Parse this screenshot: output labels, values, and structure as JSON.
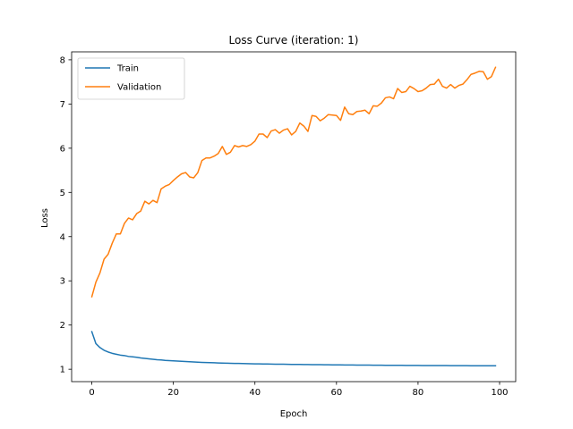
{
  "chart_data": {
    "type": "line",
    "title": "Loss Curve (iteration: 1)",
    "xlabel": "Epoch",
    "ylabel": "Loss",
    "xlim": [
      -4.95,
      103.95
    ],
    "ylim": [
      0.72,
      8.18
    ],
    "xticks": [
      0,
      20,
      40,
      60,
      80,
      100
    ],
    "yticks": [
      1,
      2,
      3,
      4,
      5,
      6,
      7,
      8
    ],
    "grid": false,
    "legend": "top-left",
    "x": [
      0,
      1,
      2,
      3,
      4,
      5,
      6,
      7,
      8,
      9,
      10,
      11,
      12,
      13,
      14,
      15,
      16,
      17,
      18,
      19,
      20,
      21,
      22,
      23,
      24,
      25,
      26,
      27,
      28,
      29,
      30,
      31,
      32,
      33,
      34,
      35,
      36,
      37,
      38,
      39,
      40,
      41,
      42,
      43,
      44,
      45,
      46,
      47,
      48,
      49,
      50,
      51,
      52,
      53,
      54,
      55,
      56,
      57,
      58,
      59,
      60,
      61,
      62,
      63,
      64,
      65,
      66,
      67,
      68,
      69,
      70,
      71,
      72,
      73,
      74,
      75,
      76,
      77,
      78,
      79,
      80,
      81,
      82,
      83,
      84,
      85,
      86,
      87,
      88,
      89,
      90,
      91,
      92,
      93,
      94,
      95,
      96,
      97,
      98,
      99
    ],
    "series": [
      {
        "name": "Train",
        "color": "#1f77b4",
        "values": [
          1.85,
          1.58,
          1.49,
          1.43,
          1.39,
          1.36,
          1.34,
          1.32,
          1.31,
          1.29,
          1.28,
          1.27,
          1.255,
          1.245,
          1.235,
          1.225,
          1.215,
          1.21,
          1.2,
          1.195,
          1.19,
          1.185,
          1.18,
          1.175,
          1.17,
          1.165,
          1.16,
          1.155,
          1.152,
          1.149,
          1.146,
          1.143,
          1.14,
          1.138,
          1.135,
          1.133,
          1.131,
          1.129,
          1.127,
          1.125,
          1.123,
          1.121,
          1.12,
          1.118,
          1.117,
          1.115,
          1.114,
          1.113,
          1.111,
          1.11,
          1.109,
          1.108,
          1.107,
          1.106,
          1.105,
          1.104,
          1.103,
          1.102,
          1.101,
          1.1,
          1.099,
          1.098,
          1.097,
          1.096,
          1.096,
          1.095,
          1.094,
          1.093,
          1.093,
          1.092,
          1.091,
          1.091,
          1.09,
          1.089,
          1.089,
          1.088,
          1.088,
          1.087,
          1.087,
          1.086,
          1.086,
          1.085,
          1.085,
          1.084,
          1.084,
          1.083,
          1.083,
          1.083,
          1.082,
          1.082,
          1.081,
          1.081,
          1.081,
          1.08,
          1.08,
          1.08,
          1.079,
          1.079,
          1.079,
          1.078
        ]
      },
      {
        "name": "Validation",
        "color": "#ff7f0e",
        "values": [
          2.64,
          2.97,
          3.18,
          3.49,
          3.6,
          3.85,
          4.06,
          4.06,
          4.3,
          4.42,
          4.38,
          4.52,
          4.58,
          4.8,
          4.74,
          4.82,
          4.77,
          5.08,
          5.14,
          5.18,
          5.27,
          5.35,
          5.42,
          5.45,
          5.35,
          5.33,
          5.45,
          5.72,
          5.78,
          5.78,
          5.82,
          5.88,
          6.04,
          5.86,
          5.91,
          6.06,
          6.03,
          6.06,
          6.04,
          6.08,
          6.16,
          6.32,
          6.32,
          6.24,
          6.39,
          6.42,
          6.34,
          6.41,
          6.44,
          6.3,
          6.38,
          6.57,
          6.5,
          6.38,
          6.74,
          6.72,
          6.62,
          6.68,
          6.76,
          6.75,
          6.74,
          6.63,
          6.93,
          6.78,
          6.76,
          6.83,
          6.84,
          6.86,
          6.78,
          6.96,
          6.95,
          7.02,
          7.14,
          7.16,
          7.12,
          7.35,
          7.26,
          7.28,
          7.4,
          7.35,
          7.28,
          7.3,
          7.36,
          7.44,
          7.45,
          7.56,
          7.4,
          7.36,
          7.44,
          7.36,
          7.42,
          7.45,
          7.55,
          7.67,
          7.7,
          7.74,
          7.73,
          7.56,
          7.62,
          7.83
        ]
      }
    ]
  }
}
